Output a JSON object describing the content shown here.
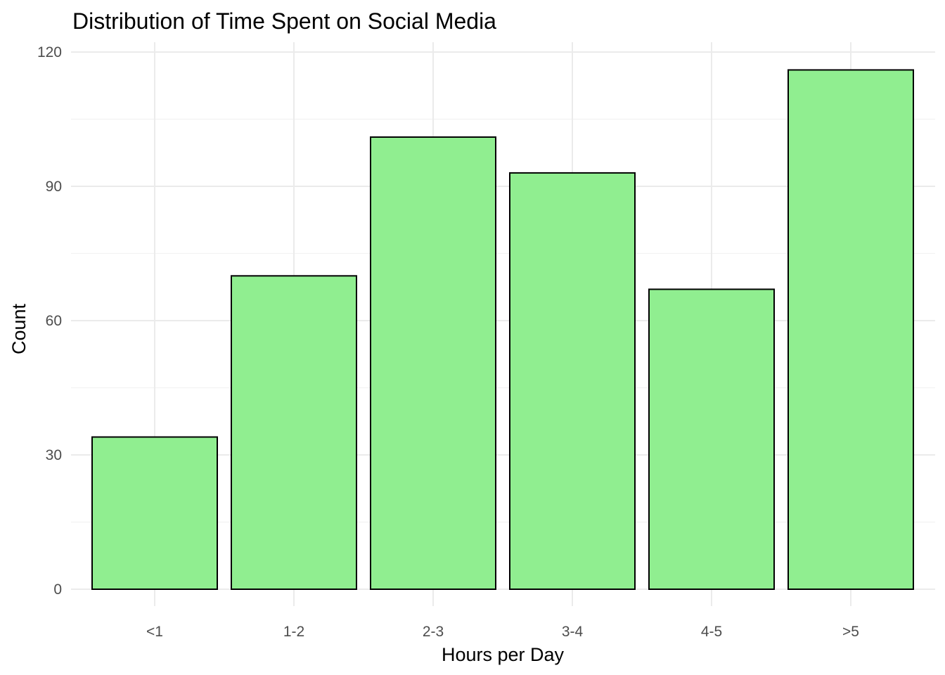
{
  "chart_data": {
    "type": "bar",
    "title": "Distribution of Time Spent on Social Media",
    "xlabel": "Hours per Day",
    "ylabel": "Count",
    "categories": [
      "<1",
      "1-2",
      "2-3",
      "3-4",
      "4-5",
      ">5"
    ],
    "values": [
      34,
      70,
      101,
      93,
      67,
      116
    ],
    "ylim": [
      0,
      120
    ],
    "yticks": [
      "0",
      "30",
      "60",
      "90",
      "120"
    ],
    "bar_fill": "#90ee90",
    "bar_outline": "#000000",
    "grid": true,
    "legend": "none"
  }
}
